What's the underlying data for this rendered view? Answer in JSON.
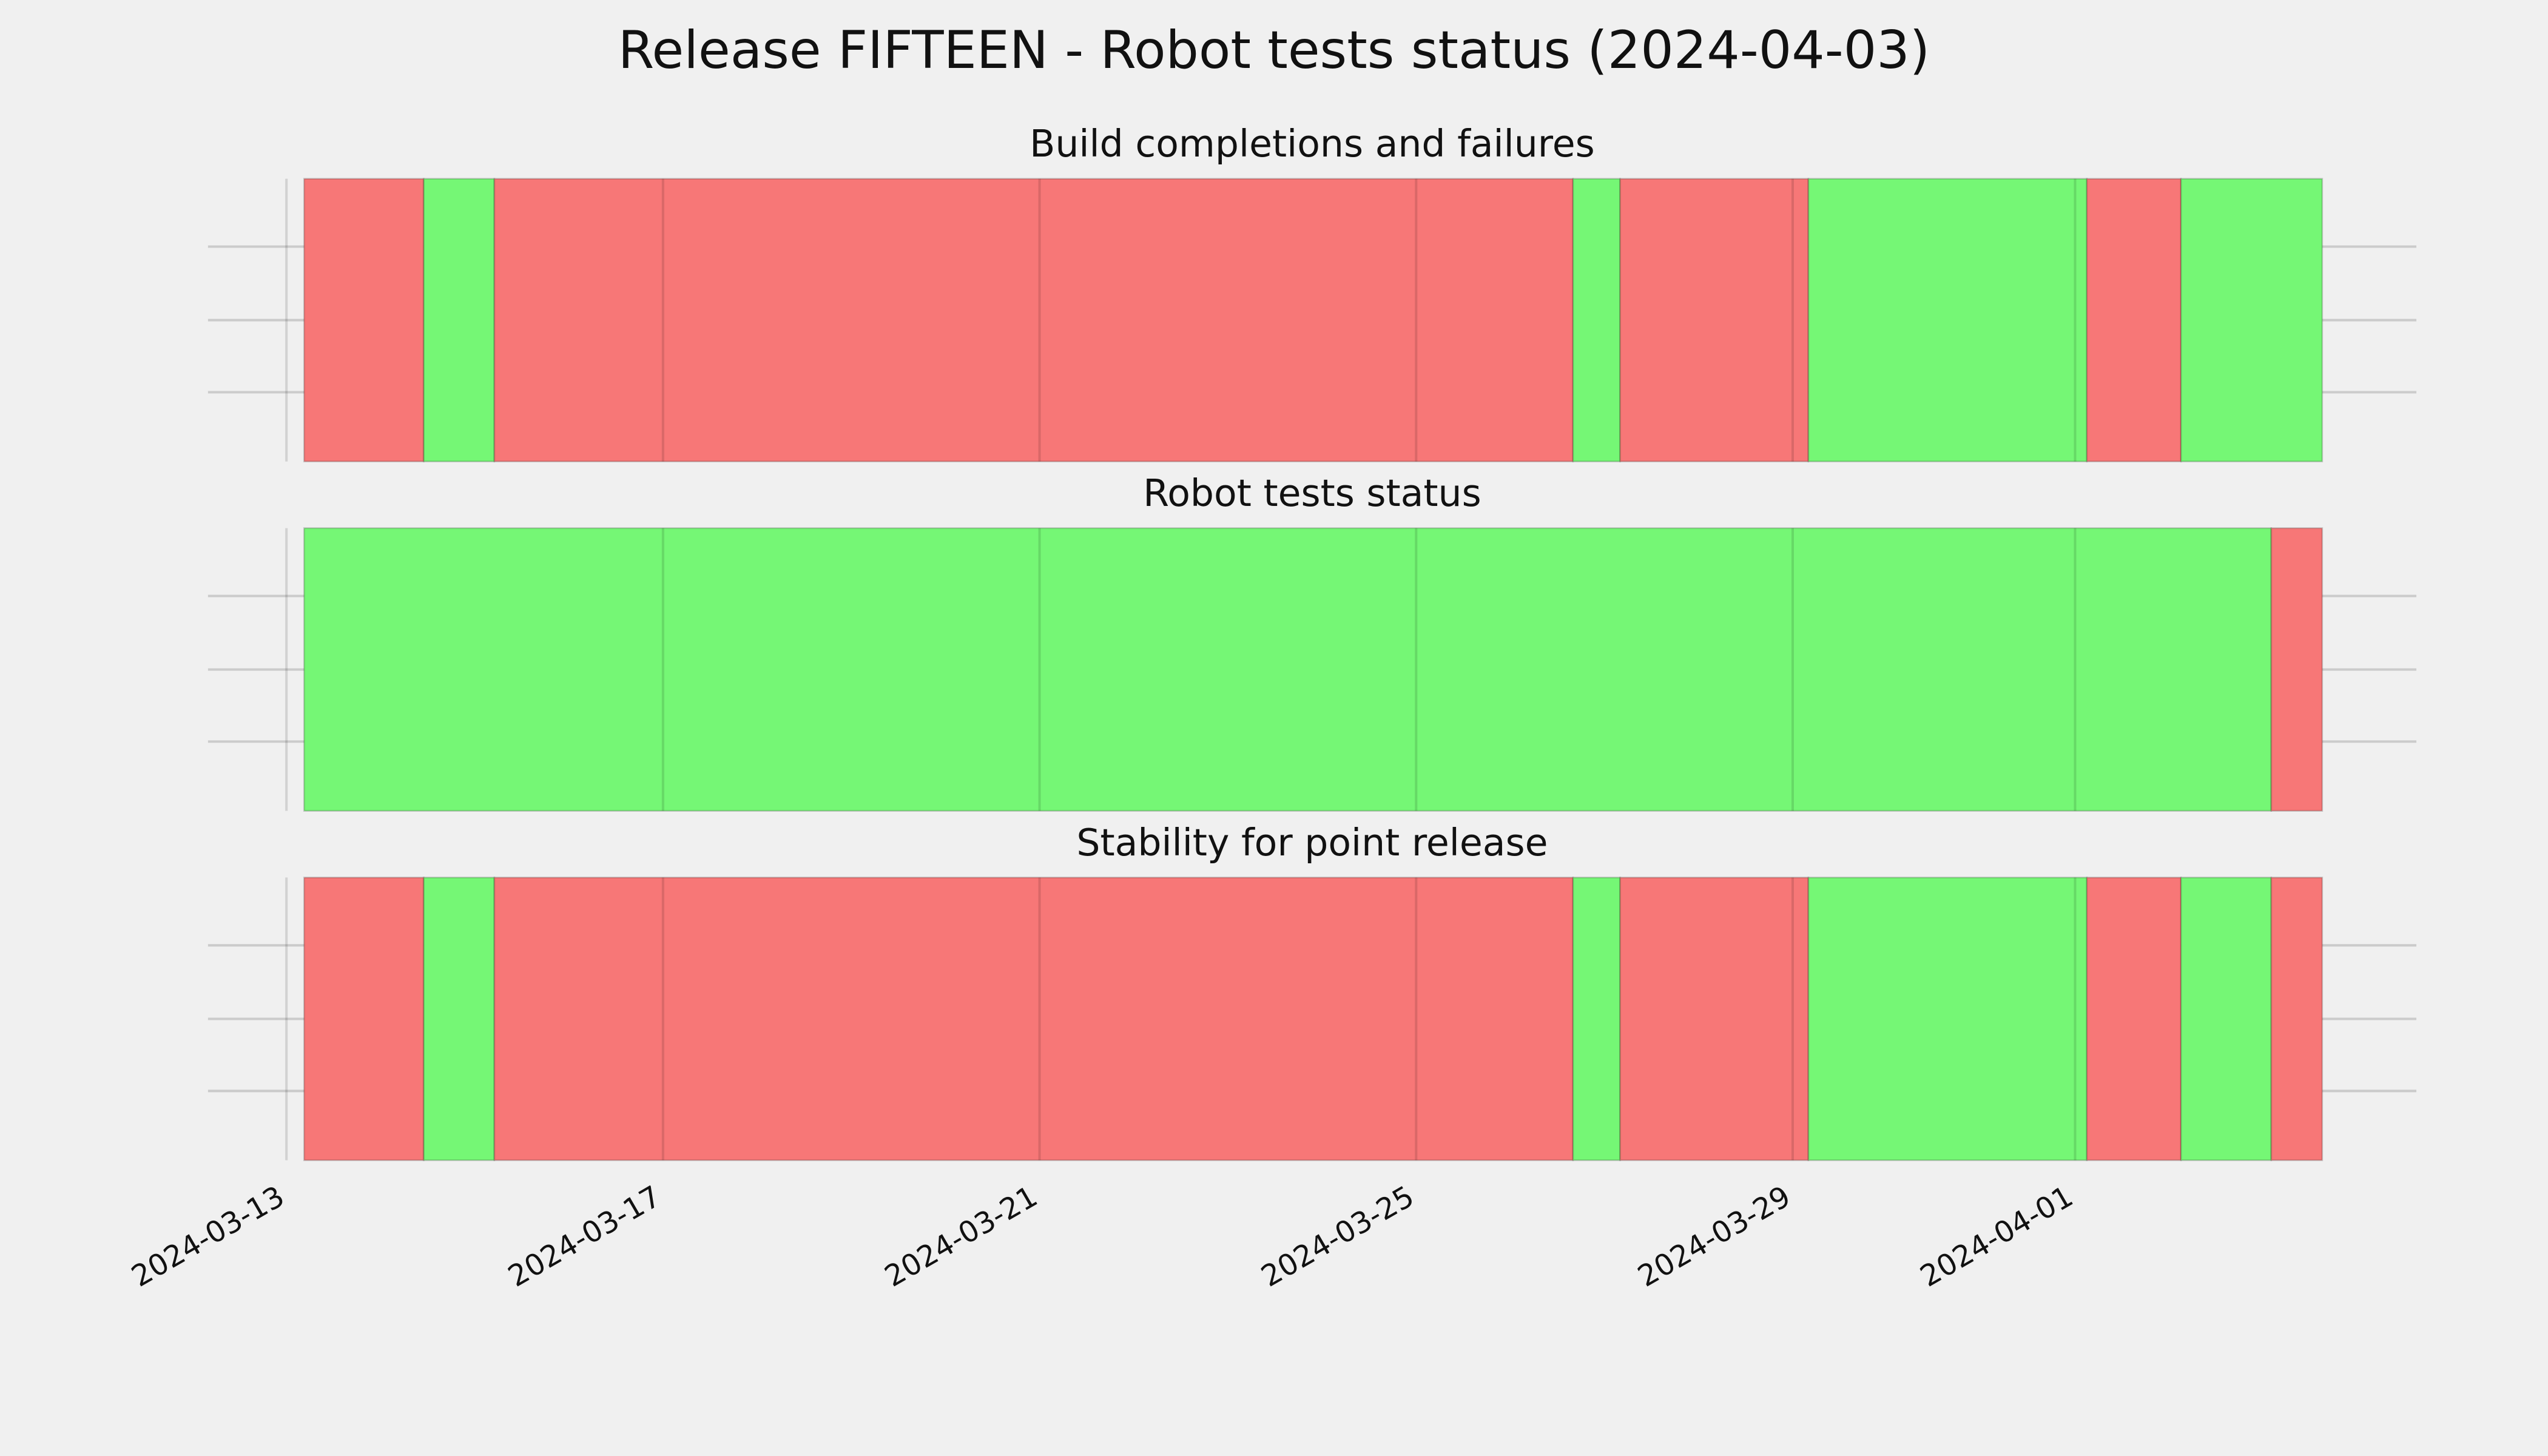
{
  "title": "Release FIFTEEN - Robot tests status (2024-04-03)",
  "chart_data": [
    {
      "type": "timeline",
      "title": "Build completions and failures",
      "xlim": [
        "2024-03-12T04:00",
        "2024-04-04T15:00"
      ],
      "xticks": [
        "2024-03-13",
        "2024-03-17",
        "2024-03-21",
        "2024-03-25",
        "2024-03-29",
        "2024-04-01"
      ],
      "segments": [
        {
          "start": "2024-03-13T04:30",
          "end": "2024-03-14T11:00",
          "color": "#f77777"
        },
        {
          "start": "2024-03-14T11:00",
          "end": "2024-03-15T05:00",
          "color": "#75f775"
        },
        {
          "start": "2024-03-15T05:00",
          "end": "2024-03-26T16:00",
          "color": "#f77777"
        },
        {
          "start": "2024-03-26T16:00",
          "end": "2024-03-27T04:00",
          "color": "#75f775"
        },
        {
          "start": "2024-03-27T04:00",
          "end": "2024-03-29T04:00",
          "color": "#f77777"
        },
        {
          "start": "2024-03-29T04:00",
          "end": "2024-04-01T03:00",
          "color": "#75f775"
        },
        {
          "start": "2024-04-01T03:00",
          "end": "2024-04-02T03:00",
          "color": "#f77777"
        },
        {
          "start": "2024-04-02T03:00",
          "end": "2024-04-03T15:00",
          "color": "#75f775"
        }
      ]
    },
    {
      "type": "timeline",
      "title": "Robot tests status",
      "xlim": [
        "2024-03-12T04:00",
        "2024-04-04T15:00"
      ],
      "xticks": [
        "2024-03-13",
        "2024-03-17",
        "2024-03-21",
        "2024-03-25",
        "2024-03-29",
        "2024-04-01"
      ],
      "segments": [
        {
          "start": "2024-03-13T04:30",
          "end": "2024-04-03T02:00",
          "color": "#75f775"
        },
        {
          "start": "2024-04-03T02:00",
          "end": "2024-04-03T15:00",
          "color": "#f77777"
        }
      ]
    },
    {
      "type": "timeline",
      "title": "Stability for point release",
      "xlim": [
        "2024-03-12T04:00",
        "2024-04-04T15:00"
      ],
      "xticks": [
        "2024-03-13",
        "2024-03-17",
        "2024-03-21",
        "2024-03-25",
        "2024-03-29",
        "2024-04-01"
      ],
      "segments": [
        {
          "start": "2024-03-13T04:30",
          "end": "2024-03-14T11:00",
          "color": "#f77777"
        },
        {
          "start": "2024-03-14T11:00",
          "end": "2024-03-15T05:00",
          "color": "#75f775"
        },
        {
          "start": "2024-03-15T05:00",
          "end": "2024-03-26T16:00",
          "color": "#f77777"
        },
        {
          "start": "2024-03-26T16:00",
          "end": "2024-03-27T04:00",
          "color": "#75f775"
        },
        {
          "start": "2024-03-27T04:00",
          "end": "2024-03-29T04:00",
          "color": "#f77777"
        },
        {
          "start": "2024-03-29T04:00",
          "end": "2024-04-01T03:00",
          "color": "#75f775"
        },
        {
          "start": "2024-04-01T03:00",
          "end": "2024-04-02T03:00",
          "color": "#f77777"
        },
        {
          "start": "2024-04-02T03:00",
          "end": "2024-04-03T02:00",
          "color": "#75f775"
        },
        {
          "start": "2024-04-03T02:00",
          "end": "2024-04-03T15:00",
          "color": "#f77777"
        }
      ]
    }
  ]
}
